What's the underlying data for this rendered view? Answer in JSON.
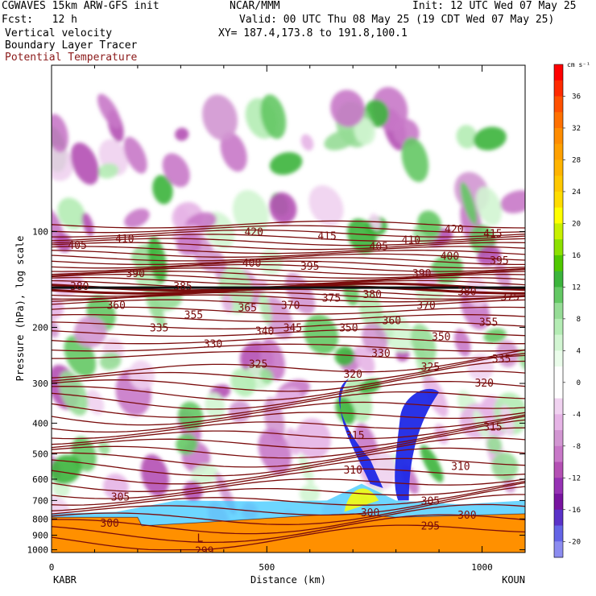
{
  "header": {
    "model": "CGWAVES 15km ARW-GFS init",
    "org": "NCAR/MMM",
    "init": "Init: 12 UTC Wed 07 May 25",
    "fcst": "Fcst:   12 h",
    "valid": "Valid: 00 UTC Thu 08 May 25 (19 CDT Wed 07 May 25)",
    "fields": [
      "Vertical velocity",
      "Boundary Layer Tracer",
      "Potential Temperature"
    ],
    "xy": "XY= 187.4,173.8 to 191.8,100.1"
  },
  "chart_data": {
    "type": "heatmap",
    "title": "Vertical velocity",
    "xlabel": "Distance (km)",
    "ylabel": "Pressure (hPa), log scale",
    "x_range": [
      0,
      1100
    ],
    "x_ticks": [
      0,
      500,
      1000
    ],
    "y_range": [
      1020,
      30
    ],
    "y_scale": "log",
    "y_ticks": [
      100,
      200,
      300,
      400,
      500,
      600,
      700,
      800,
      900,
      1000
    ],
    "endpoints": {
      "left": "KABR",
      "right": "KOUN"
    },
    "colorbar": {
      "unit": "cm s⁻¹",
      "tick_labels": [
        36,
        32,
        28,
        24,
        20,
        16,
        12,
        8,
        4,
        0,
        -4,
        -8,
        -12,
        -16,
        -20
      ],
      "levels": [
        40,
        38,
        36,
        34,
        32,
        30,
        28,
        26,
        24,
        22,
        20,
        18,
        16,
        14,
        12,
        10,
        8,
        6,
        4,
        2,
        0,
        -2,
        -4,
        -6,
        -8,
        -10,
        -12,
        -14,
        -16,
        -18,
        -20,
        -22
      ],
      "colors": [
        "#ff0000",
        "#ff2a00",
        "#ff5000",
        "#ff7000",
        "#ff8c00",
        "#ffa000",
        "#ffb400",
        "#ffc800",
        "#ffdc00",
        "#ffff00",
        "#c8f000",
        "#8ce000",
        "#50c800",
        "#3cb43c",
        "#64c864",
        "#96dc96",
        "#b4ecb4",
        "#d2f5d2",
        "#eafcea",
        "#ffffff",
        "#ffffff",
        "#f0d2f0",
        "#e6b4e6",
        "#d296d2",
        "#c878c8",
        "#b450b4",
        "#9632b4",
        "#7814a0",
        "#5a32c8",
        "#6464e6",
        "#8c8cf0",
        "#b4b4ff"
      ]
    },
    "theta_labels": [
      {
        "value": 405,
        "x": 60,
        "p": 110
      },
      {
        "value": 410,
        "x": 170,
        "p": 105
      },
      {
        "value": 420,
        "x": 470,
        "p": 100
      },
      {
        "value": 415,
        "x": 640,
        "p": 103
      },
      {
        "value": 405,
        "x": 760,
        "p": 111
      },
      {
        "value": 410,
        "x": 835,
        "p": 106
      },
      {
        "value": 420,
        "x": 935,
        "p": 98
      },
      {
        "value": 415,
        "x": 1025,
        "p": 101
      },
      {
        "value": 390,
        "x": 195,
        "p": 135
      },
      {
        "value": 400,
        "x": 465,
        "p": 125
      },
      {
        "value": 395,
        "x": 600,
        "p": 128
      },
      {
        "value": 390,
        "x": 860,
        "p": 135
      },
      {
        "value": 400,
        "x": 925,
        "p": 119
      },
      {
        "value": 395,
        "x": 1040,
        "p": 123
      },
      {
        "value": 380,
        "x": 65,
        "p": 148
      },
      {
        "value": 385,
        "x": 305,
        "p": 148
      },
      {
        "value": 380,
        "x": 745,
        "p": 157
      },
      {
        "value": 380,
        "x": 965,
        "p": 154
      },
      {
        "value": 375,
        "x": 1065,
        "p": 160
      },
      {
        "value": 375,
        "x": 650,
        "p": 161
      },
      {
        "value": 360,
        "x": 150,
        "p": 170
      },
      {
        "value": 355,
        "x": 330,
        "p": 182
      },
      {
        "value": 365,
        "x": 455,
        "p": 173
      },
      {
        "value": 370,
        "x": 555,
        "p": 170
      },
      {
        "value": 370,
        "x": 870,
        "p": 170
      },
      {
        "value": 360,
        "x": 790,
        "p": 190
      },
      {
        "value": 355,
        "x": 1015,
        "p": 192
      },
      {
        "value": 335,
        "x": 250,
        "p": 200
      },
      {
        "value": 340,
        "x": 495,
        "p": 205
      },
      {
        "value": 345,
        "x": 560,
        "p": 200
      },
      {
        "value": 350,
        "x": 690,
        "p": 200
      },
      {
        "value": 350,
        "x": 905,
        "p": 213
      },
      {
        "value": 330,
        "x": 375,
        "p": 225
      },
      {
        "value": 330,
        "x": 765,
        "p": 240
      },
      {
        "value": 325,
        "x": 480,
        "p": 260
      },
      {
        "value": 325,
        "x": 880,
        "p": 265
      },
      {
        "value": 335,
        "x": 1045,
        "p": 250
      },
      {
        "value": 320,
        "x": 700,
        "p": 280
      },
      {
        "value": 320,
        "x": 1005,
        "p": 298
      },
      {
        "value": 315,
        "x": 705,
        "p": 435
      },
      {
        "value": 315,
        "x": 1025,
        "p": 410
      },
      {
        "value": 310,
        "x": 700,
        "p": 560
      },
      {
        "value": 310,
        "x": 950,
        "p": 545
      },
      {
        "value": 305,
        "x": 160,
        "p": 680
      },
      {
        "value": 305,
        "x": 880,
        "p": 700
      },
      {
        "value": 300,
        "x": 135,
        "p": 822
      },
      {
        "value": 300,
        "x": 740,
        "p": 762
      },
      {
        "value": 300,
        "x": 965,
        "p": 775
      },
      {
        "value": 295,
        "x": 880,
        "p": 840
      },
      {
        "value": 299,
        "x": 355,
        "p": 1005
      }
    ],
    "annotations": [
      {
        "text": "L",
        "x": 345,
        "p": 915
      }
    ]
  }
}
